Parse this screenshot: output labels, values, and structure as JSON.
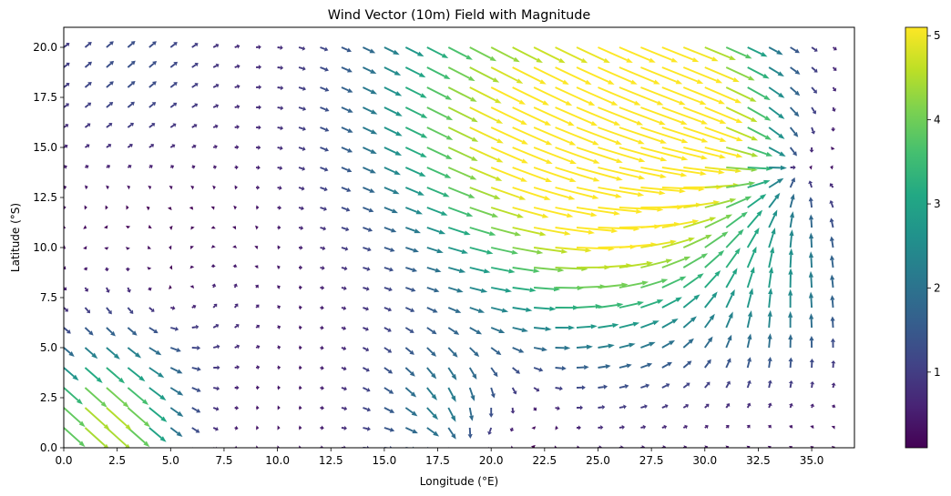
{
  "chart_data": {
    "type": "quiver",
    "title": "Wind Vector (10m) Field with Magnitude",
    "xlabel": "Longitude (°E)",
    "ylabel": "Latitude (°S)",
    "xlim": [
      0,
      37
    ],
    "ylim": [
      0,
      21
    ],
    "xticks": [
      "0.0",
      "2.5",
      "5.0",
      "7.5",
      "10.0",
      "12.5",
      "15.0",
      "17.5",
      "20.0",
      "22.5",
      "25.0",
      "27.5",
      "30.0",
      "32.5",
      "35.0"
    ],
    "xtick_values": [
      0,
      2.5,
      5,
      7.5,
      10,
      12.5,
      15,
      17.5,
      20,
      22.5,
      25,
      27.5,
      30,
      32.5,
      35
    ],
    "yticks": [
      "0.0",
      "2.5",
      "5.0",
      "7.5",
      "10.0",
      "12.5",
      "15.0",
      "17.5",
      "20.0"
    ],
    "ytick_values": [
      0,
      2.5,
      5,
      7.5,
      10,
      12.5,
      15,
      17.5,
      20
    ],
    "grid": false,
    "colormap": "viridis",
    "colorbar": {
      "range": [
        0.1,
        5.1
      ],
      "ticks": [
        "1",
        "2",
        "3",
        "4",
        "5"
      ],
      "tick_values": [
        1,
        2,
        3,
        4,
        5
      ]
    },
    "vector_grid": {
      "x_start": 0,
      "x_step": 1,
      "x_count": 37,
      "y_start": 0,
      "y_step": 1,
      "y_count": 21
    }
  }
}
